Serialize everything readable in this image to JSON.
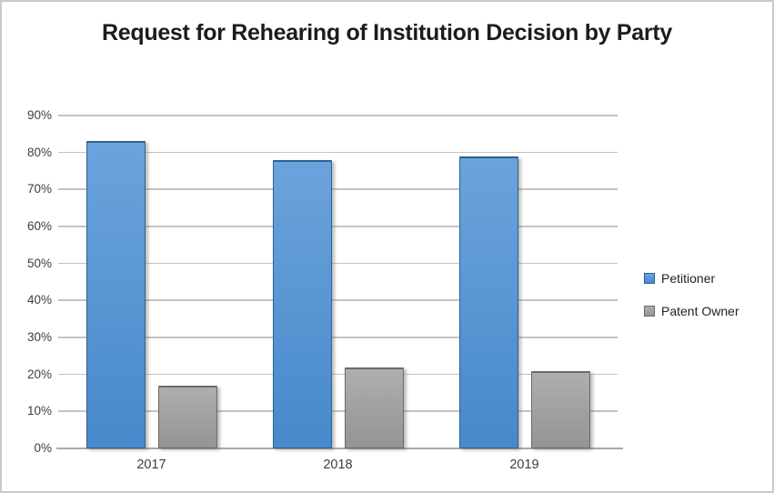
{
  "chart_data": {
    "type": "bar",
    "title": "Request for Rehearing of Institution Decision by Party",
    "categories": [
      "2017",
      "2018",
      "2019"
    ],
    "series": [
      {
        "name": "Petitioner",
        "values": [
          83,
          78,
          79
        ],
        "color": "#5593D3",
        "fill_top": "#6BA3DC",
        "fill_bottom": "#4789CB",
        "border_color": "#2D618F"
      },
      {
        "name": "Patent Owner",
        "values": [
          17,
          22,
          21
        ],
        "color": "#A3A3A3",
        "fill_top": "#AEAEAE",
        "fill_bottom": "#949494",
        "border_color": "#6B6B6B"
      }
    ],
    "xlabel": "",
    "ylabel": "",
    "ylim": [
      0,
      90
    ],
    "yticks": [
      0,
      10,
      20,
      30,
      40,
      50,
      60,
      70,
      80,
      90
    ],
    "ytick_labels": [
      "0%",
      "10%",
      "20%",
      "30%",
      "40%",
      "50%",
      "60%",
      "70%",
      "80%",
      "90%"
    ],
    "grid": true,
    "legend_position": "right",
    "colors": {
      "gridline": "#c3c3c3",
      "axis_line": "#a9a9a9",
      "title_text": "#1c1c1c",
      "tick_text": "#3d3d3d",
      "frame_border": "#c9c9c9",
      "background": "#ffffff"
    }
  }
}
